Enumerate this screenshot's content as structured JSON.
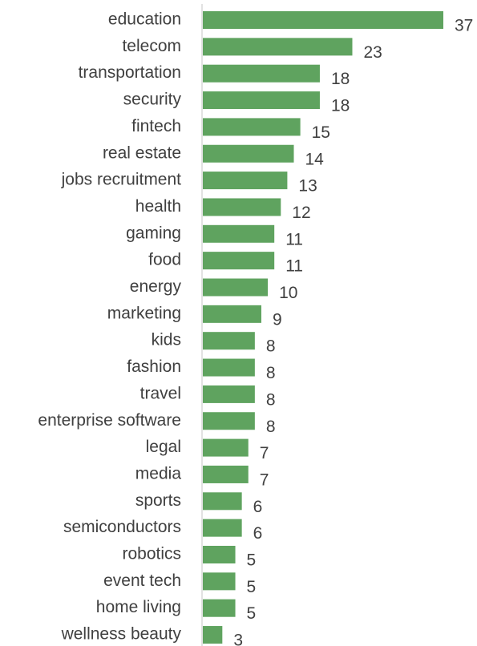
{
  "chart_data": {
    "type": "bar",
    "orientation": "horizontal",
    "categories": [
      "education",
      "telecom",
      "transportation",
      "security",
      "fintech",
      "real estate",
      "jobs recruitment",
      "health",
      "gaming",
      "food",
      "energy",
      "marketing",
      "kids",
      "fashion",
      "travel",
      "enterprise software",
      "legal",
      "media",
      "sports",
      "semiconductors",
      "robotics",
      "event tech",
      "home living",
      "wellness beauty"
    ],
    "values": [
      37,
      23,
      18,
      18,
      15,
      14,
      13,
      12,
      11,
      11,
      10,
      9,
      8,
      8,
      8,
      8,
      7,
      7,
      6,
      6,
      5,
      5,
      5,
      3
    ],
    "title": "",
    "xlabel": "",
    "ylabel": "",
    "xlim": [
      0,
      37
    ],
    "data_labels": true,
    "grid": false,
    "legend": "none",
    "bar_color": "#5fa35f",
    "axis_color": "#d9d9d9",
    "text_color": "#404040"
  }
}
